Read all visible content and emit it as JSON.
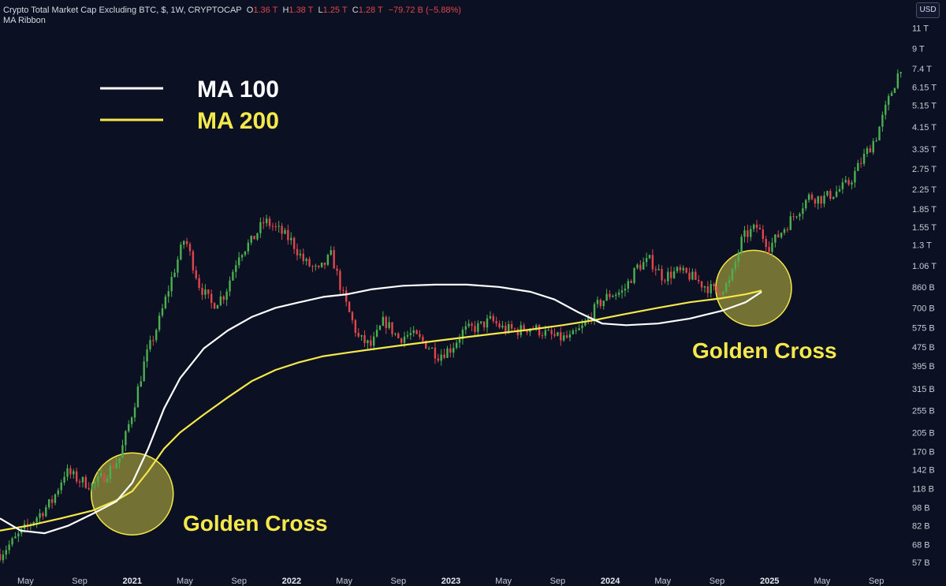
{
  "header": {
    "symbol": "Crypto Total Market Cap Excluding BTC, $, 1W, CRYPTOCAP",
    "o_label": "O",
    "o_value": "1.36 T",
    "h_label": "H",
    "h_value": "1.38 T",
    "l_label": "L",
    "l_value": "1.25 T",
    "c_label": "C",
    "c_value": "1.28 T",
    "change": "−79.72 B (−5.88%)",
    "indicator": "MA Ribbon",
    "currency": "USD"
  },
  "colors": {
    "background": "#0b1023",
    "up": "#4caf50",
    "down": "#e0464b",
    "ma100": "#ffffff",
    "ma200": "#f5e84a",
    "highlight": "#f5e84a"
  },
  "chart_data": {
    "type": "candlestick",
    "scale": "log",
    "y_ticks": [
      "11 T",
      "9 T",
      "7.4 T",
      "6.15 T",
      "5.15 T",
      "4.15 T",
      "3.35 T",
      "2.75 T",
      "2.25 T",
      "1.85 T",
      "1.55 T",
      "1.3 T",
      "1.06 T",
      "860 B",
      "700 B",
      "575 B",
      "475 B",
      "395 B",
      "315 B",
      "255 B",
      "205 B",
      "170 B",
      "142 B",
      "118 B",
      "98 B",
      "82 B",
      "68 B",
      "57 B"
    ],
    "y_tick_values": [
      11000,
      9000,
      7400,
      6150,
      5150,
      4150,
      3350,
      2750,
      2250,
      1850,
      1550,
      1300,
      1060,
      860,
      700,
      575,
      475,
      395,
      315,
      255,
      205,
      170,
      142,
      118,
      98,
      82,
      68,
      57
    ],
    "ylim": [
      52,
      11500
    ],
    "x_ticks": [
      {
        "label": "May",
        "date": 2020.33,
        "bold": false
      },
      {
        "label": "Sep",
        "date": 2020.67,
        "bold": false
      },
      {
        "label": "2021",
        "date": 2021.0,
        "bold": true
      },
      {
        "label": "May",
        "date": 2021.33,
        "bold": false
      },
      {
        "label": "Sep",
        "date": 2021.67,
        "bold": false
      },
      {
        "label": "2022",
        "date": 2022.0,
        "bold": true
      },
      {
        "label": "May",
        "date": 2022.33,
        "bold": false
      },
      {
        "label": "Sep",
        "date": 2022.67,
        "bold": false
      },
      {
        "label": "2023",
        "date": 2023.0,
        "bold": true
      },
      {
        "label": "May",
        "date": 2023.33,
        "bold": false
      },
      {
        "label": "Sep",
        "date": 2023.67,
        "bold": false
      },
      {
        "label": "2024",
        "date": 2024.0,
        "bold": true
      },
      {
        "label": "May",
        "date": 2024.33,
        "bold": false
      },
      {
        "label": "Sep",
        "date": 2024.67,
        "bold": false
      },
      {
        "label": "2025",
        "date": 2025.0,
        "bold": true
      },
      {
        "label": "May",
        "date": 2025.33,
        "bold": false
      },
      {
        "label": "Sep",
        "date": 2025.67,
        "bold": false
      }
    ],
    "xlim": [
      2020.17,
      2025.85
    ],
    "price_path": [
      [
        2020.17,
        62
      ],
      [
        2020.25,
        70
      ],
      [
        2020.33,
        80
      ],
      [
        2020.42,
        92
      ],
      [
        2020.5,
        105
      ],
      [
        2020.58,
        140
      ],
      [
        2020.67,
        128
      ],
      [
        2020.75,
        122
      ],
      [
        2020.83,
        135
      ],
      [
        2020.92,
        160
      ],
      [
        2021.0,
        250
      ],
      [
        2021.08,
        420
      ],
      [
        2021.17,
        620
      ],
      [
        2021.25,
        950
      ],
      [
        2021.33,
        1400
      ],
      [
        2021.42,
        880
      ],
      [
        2021.5,
        720
      ],
      [
        2021.58,
        800
      ],
      [
        2021.67,
        1200
      ],
      [
        2021.75,
        1350
      ],
      [
        2021.83,
        1650
      ],
      [
        2021.92,
        1500
      ],
      [
        2022.0,
        1350
      ],
      [
        2022.08,
        1100
      ],
      [
        2022.17,
        1000
      ],
      [
        2022.25,
        1180
      ],
      [
        2022.33,
        760
      ],
      [
        2022.42,
        520
      ],
      [
        2022.5,
        480
      ],
      [
        2022.58,
        620
      ],
      [
        2022.67,
        520
      ],
      [
        2022.75,
        540
      ],
      [
        2022.83,
        500
      ],
      [
        2022.92,
        440
      ],
      [
        2023.0,
        470
      ],
      [
        2023.08,
        560
      ],
      [
        2023.17,
        580
      ],
      [
        2023.25,
        620
      ],
      [
        2023.33,
        570
      ],
      [
        2023.42,
        560
      ],
      [
        2023.5,
        580
      ],
      [
        2023.58,
        550
      ],
      [
        2023.67,
        520
      ],
      [
        2023.75,
        520
      ],
      [
        2023.83,
        580
      ],
      [
        2023.92,
        720
      ],
      [
        2024.0,
        800
      ],
      [
        2024.08,
        820
      ],
      [
        2024.17,
        1050
      ],
      [
        2024.25,
        1120
      ],
      [
        2024.33,
        950
      ],
      [
        2024.42,
        1000
      ],
      [
        2024.5,
        960
      ],
      [
        2024.58,
        880
      ],
      [
        2024.67,
        820
      ],
      [
        2024.75,
        900
      ],
      [
        2024.83,
        1400
      ],
      [
        2024.92,
        1550
      ],
      [
        2025.0,
        1280
      ],
      [
        2025.08,
        1500
      ],
      [
        2025.17,
        1800
      ],
      [
        2025.25,
        2100
      ],
      [
        2025.33,
        2050
      ],
      [
        2025.42,
        2200
      ],
      [
        2025.5,
        2400
      ],
      [
        2025.58,
        3000
      ],
      [
        2025.67,
        3800
      ],
      [
        2025.75,
        5500
      ],
      [
        2025.83,
        7800
      ]
    ],
    "ma100": [
      [
        2020.17,
        88
      ],
      [
        2020.3,
        78
      ],
      [
        2020.45,
        76
      ],
      [
        2020.6,
        82
      ],
      [
        2020.75,
        92
      ],
      [
        2020.9,
        104
      ],
      [
        2021.0,
        125
      ],
      [
        2021.1,
        175
      ],
      [
        2021.2,
        260
      ],
      [
        2021.3,
        350
      ],
      [
        2021.45,
        470
      ],
      [
        2021.6,
        560
      ],
      [
        2021.75,
        640
      ],
      [
        2021.9,
        700
      ],
      [
        2022.05,
        740
      ],
      [
        2022.2,
        780
      ],
      [
        2022.35,
        800
      ],
      [
        2022.5,
        840
      ],
      [
        2022.7,
        870
      ],
      [
        2022.9,
        880
      ],
      [
        2023.1,
        880
      ],
      [
        2023.3,
        860
      ],
      [
        2023.5,
        820
      ],
      [
        2023.65,
        760
      ],
      [
        2023.8,
        670
      ],
      [
        2023.95,
        600
      ],
      [
        2024.1,
        590
      ],
      [
        2024.3,
        600
      ],
      [
        2024.5,
        630
      ],
      [
        2024.7,
        680
      ],
      [
        2024.85,
        740
      ],
      [
        2024.95,
        820
      ]
    ],
    "ma200": [
      [
        2020.17,
        78
      ],
      [
        2020.35,
        82
      ],
      [
        2020.55,
        88
      ],
      [
        2020.75,
        95
      ],
      [
        2020.9,
        105
      ],
      [
        2021.0,
        115
      ],
      [
        2021.1,
        140
      ],
      [
        2021.2,
        175
      ],
      [
        2021.3,
        205
      ],
      [
        2021.45,
        245
      ],
      [
        2021.6,
        290
      ],
      [
        2021.75,
        340
      ],
      [
        2021.9,
        380
      ],
      [
        2022.05,
        410
      ],
      [
        2022.2,
        435
      ],
      [
        2022.35,
        450
      ],
      [
        2022.5,
        465
      ],
      [
        2022.7,
        485
      ],
      [
        2022.9,
        505
      ],
      [
        2023.1,
        525
      ],
      [
        2023.3,
        545
      ],
      [
        2023.5,
        565
      ],
      [
        2023.7,
        590
      ],
      [
        2023.9,
        620
      ],
      [
        2024.1,
        660
      ],
      [
        2024.3,
        700
      ],
      [
        2024.5,
        740
      ],
      [
        2024.7,
        770
      ],
      [
        2024.85,
        800
      ],
      [
        2024.95,
        830
      ]
    ],
    "legend": [
      {
        "name": "MA 100",
        "color": "#ffffff"
      },
      {
        "name": "MA 200",
        "color": "#f5e84a"
      }
    ],
    "annotations": [
      {
        "text": "Golden Cross",
        "date": 2021.0,
        "value": 112
      },
      {
        "text": "Golden Cross",
        "date": 2024.9,
        "value": 850
      }
    ]
  }
}
